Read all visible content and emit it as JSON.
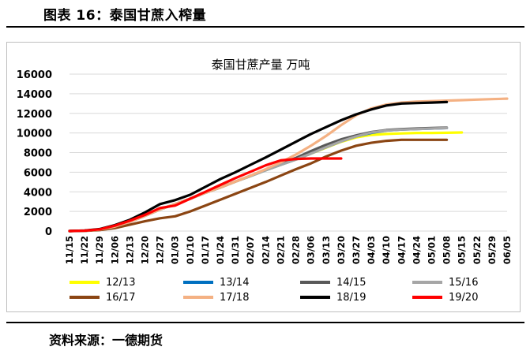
{
  "figure_heading": "图表 16：泰国甘蔗入榨量",
  "source_note": "资料来源：一德期货",
  "chart_data": {
    "type": "line",
    "title": "泰国甘蔗产量 万吨",
    "xlabel": "",
    "ylabel": "",
    "ylim": [
      0,
      16000
    ],
    "yticks": [
      0,
      2000,
      4000,
      6000,
      8000,
      10000,
      12000,
      14000,
      16000
    ],
    "ytick_labels": [
      "0",
      "2000",
      "4000",
      "6000",
      "8000",
      "10000",
      "12000",
      "14000",
      "16000"
    ],
    "grid": "horizontal",
    "legend_position": "bottom",
    "categories": [
      "11/15",
      "11/22",
      "11/29",
      "12/06",
      "12/13",
      "12/20",
      "12/27",
      "01/03",
      "01/10",
      "01/17",
      "01/24",
      "01/31",
      "02/07",
      "02/14",
      "02/21",
      "02/28",
      "03/06",
      "03/13",
      "03/20",
      "03/27",
      "04/03",
      "04/10",
      "04/17",
      "04/24",
      "05/01",
      "05/08",
      "05/15",
      "05/22",
      "05/29",
      "06/05"
    ],
    "series": [
      {
        "name": "12/13",
        "color": "#ffff00",
        "values": [
          0,
          30,
          150,
          450,
          950,
          1550,
          2200,
          2750,
          3300,
          3900,
          4450,
          5050,
          5600,
          6200,
          6750,
          7300,
          7900,
          8500,
          9100,
          9550,
          9800,
          9900,
          9950,
          10000,
          10000,
          10020,
          10050,
          null,
          null,
          null
        ]
      },
      {
        "name": "13/14",
        "color": "#0070c0",
        "values": [
          0,
          30,
          150,
          450,
          950,
          1550,
          2200,
          2750,
          3300,
          3900,
          4450,
          5050,
          5600,
          6200,
          6750,
          7300,
          7900,
          8550,
          9150,
          9650,
          10000,
          10250,
          10350,
          10400,
          10450,
          10500,
          null,
          null,
          null,
          null
        ]
      },
      {
        "name": "14/15",
        "color": "#595959",
        "values": [
          0,
          30,
          150,
          450,
          950,
          1550,
          2200,
          2750,
          3300,
          3900,
          4450,
          5050,
          5650,
          6250,
          6850,
          7450,
          8150,
          8800,
          9350,
          9750,
          10100,
          10300,
          10400,
          10450,
          10500,
          10550,
          null,
          null,
          null,
          null
        ]
      },
      {
        "name": "15/16",
        "color": "#a6a6a6",
        "values": [
          0,
          30,
          150,
          450,
          950,
          1550,
          2200,
          2750,
          3300,
          3900,
          4450,
          5050,
          5600,
          6200,
          6750,
          7300,
          7900,
          8550,
          9150,
          9650,
          10050,
          10250,
          10350,
          10400,
          10450,
          10500,
          null,
          null,
          null,
          null
        ]
      },
      {
        "name": "16/17",
        "color": "#8b4513",
        "values": [
          0,
          20,
          100,
          300,
          650,
          1000,
          1300,
          1500,
          2000,
          2600,
          3200,
          3800,
          4400,
          5000,
          5650,
          6300,
          6900,
          7600,
          8200,
          8700,
          9000,
          9200,
          9300,
          9300,
          9300,
          9300,
          null,
          null,
          null,
          null
        ]
      },
      {
        "name": "17/18",
        "color": "#f4b183",
        "values": [
          0,
          30,
          150,
          450,
          950,
          1550,
          2200,
          2750,
          3300,
          3900,
          4450,
          5050,
          5650,
          6300,
          7000,
          7800,
          8700,
          9700,
          10800,
          11800,
          12500,
          12900,
          13100,
          13200,
          13250,
          13300,
          13350,
          13400,
          13450,
          13500
        ]
      },
      {
        "name": "18/19",
        "color": "#000000",
        "values": [
          0,
          50,
          200,
          600,
          1150,
          1900,
          2750,
          3150,
          3700,
          4500,
          5300,
          6000,
          6750,
          7500,
          8300,
          9100,
          9900,
          10600,
          11300,
          11900,
          12400,
          12800,
          13000,
          13050,
          13100,
          13150,
          null,
          null,
          null,
          null
        ]
      },
      {
        "name": "19/20",
        "color": "#ff0000",
        "values": [
          0,
          40,
          180,
          550,
          1050,
          1650,
          2350,
          2600,
          3300,
          4000,
          4700,
          5400,
          6050,
          6700,
          7200,
          7350,
          7400,
          7400,
          7400,
          null,
          null,
          null,
          null,
          null,
          null,
          null,
          null,
          null,
          null,
          null
        ]
      }
    ]
  }
}
